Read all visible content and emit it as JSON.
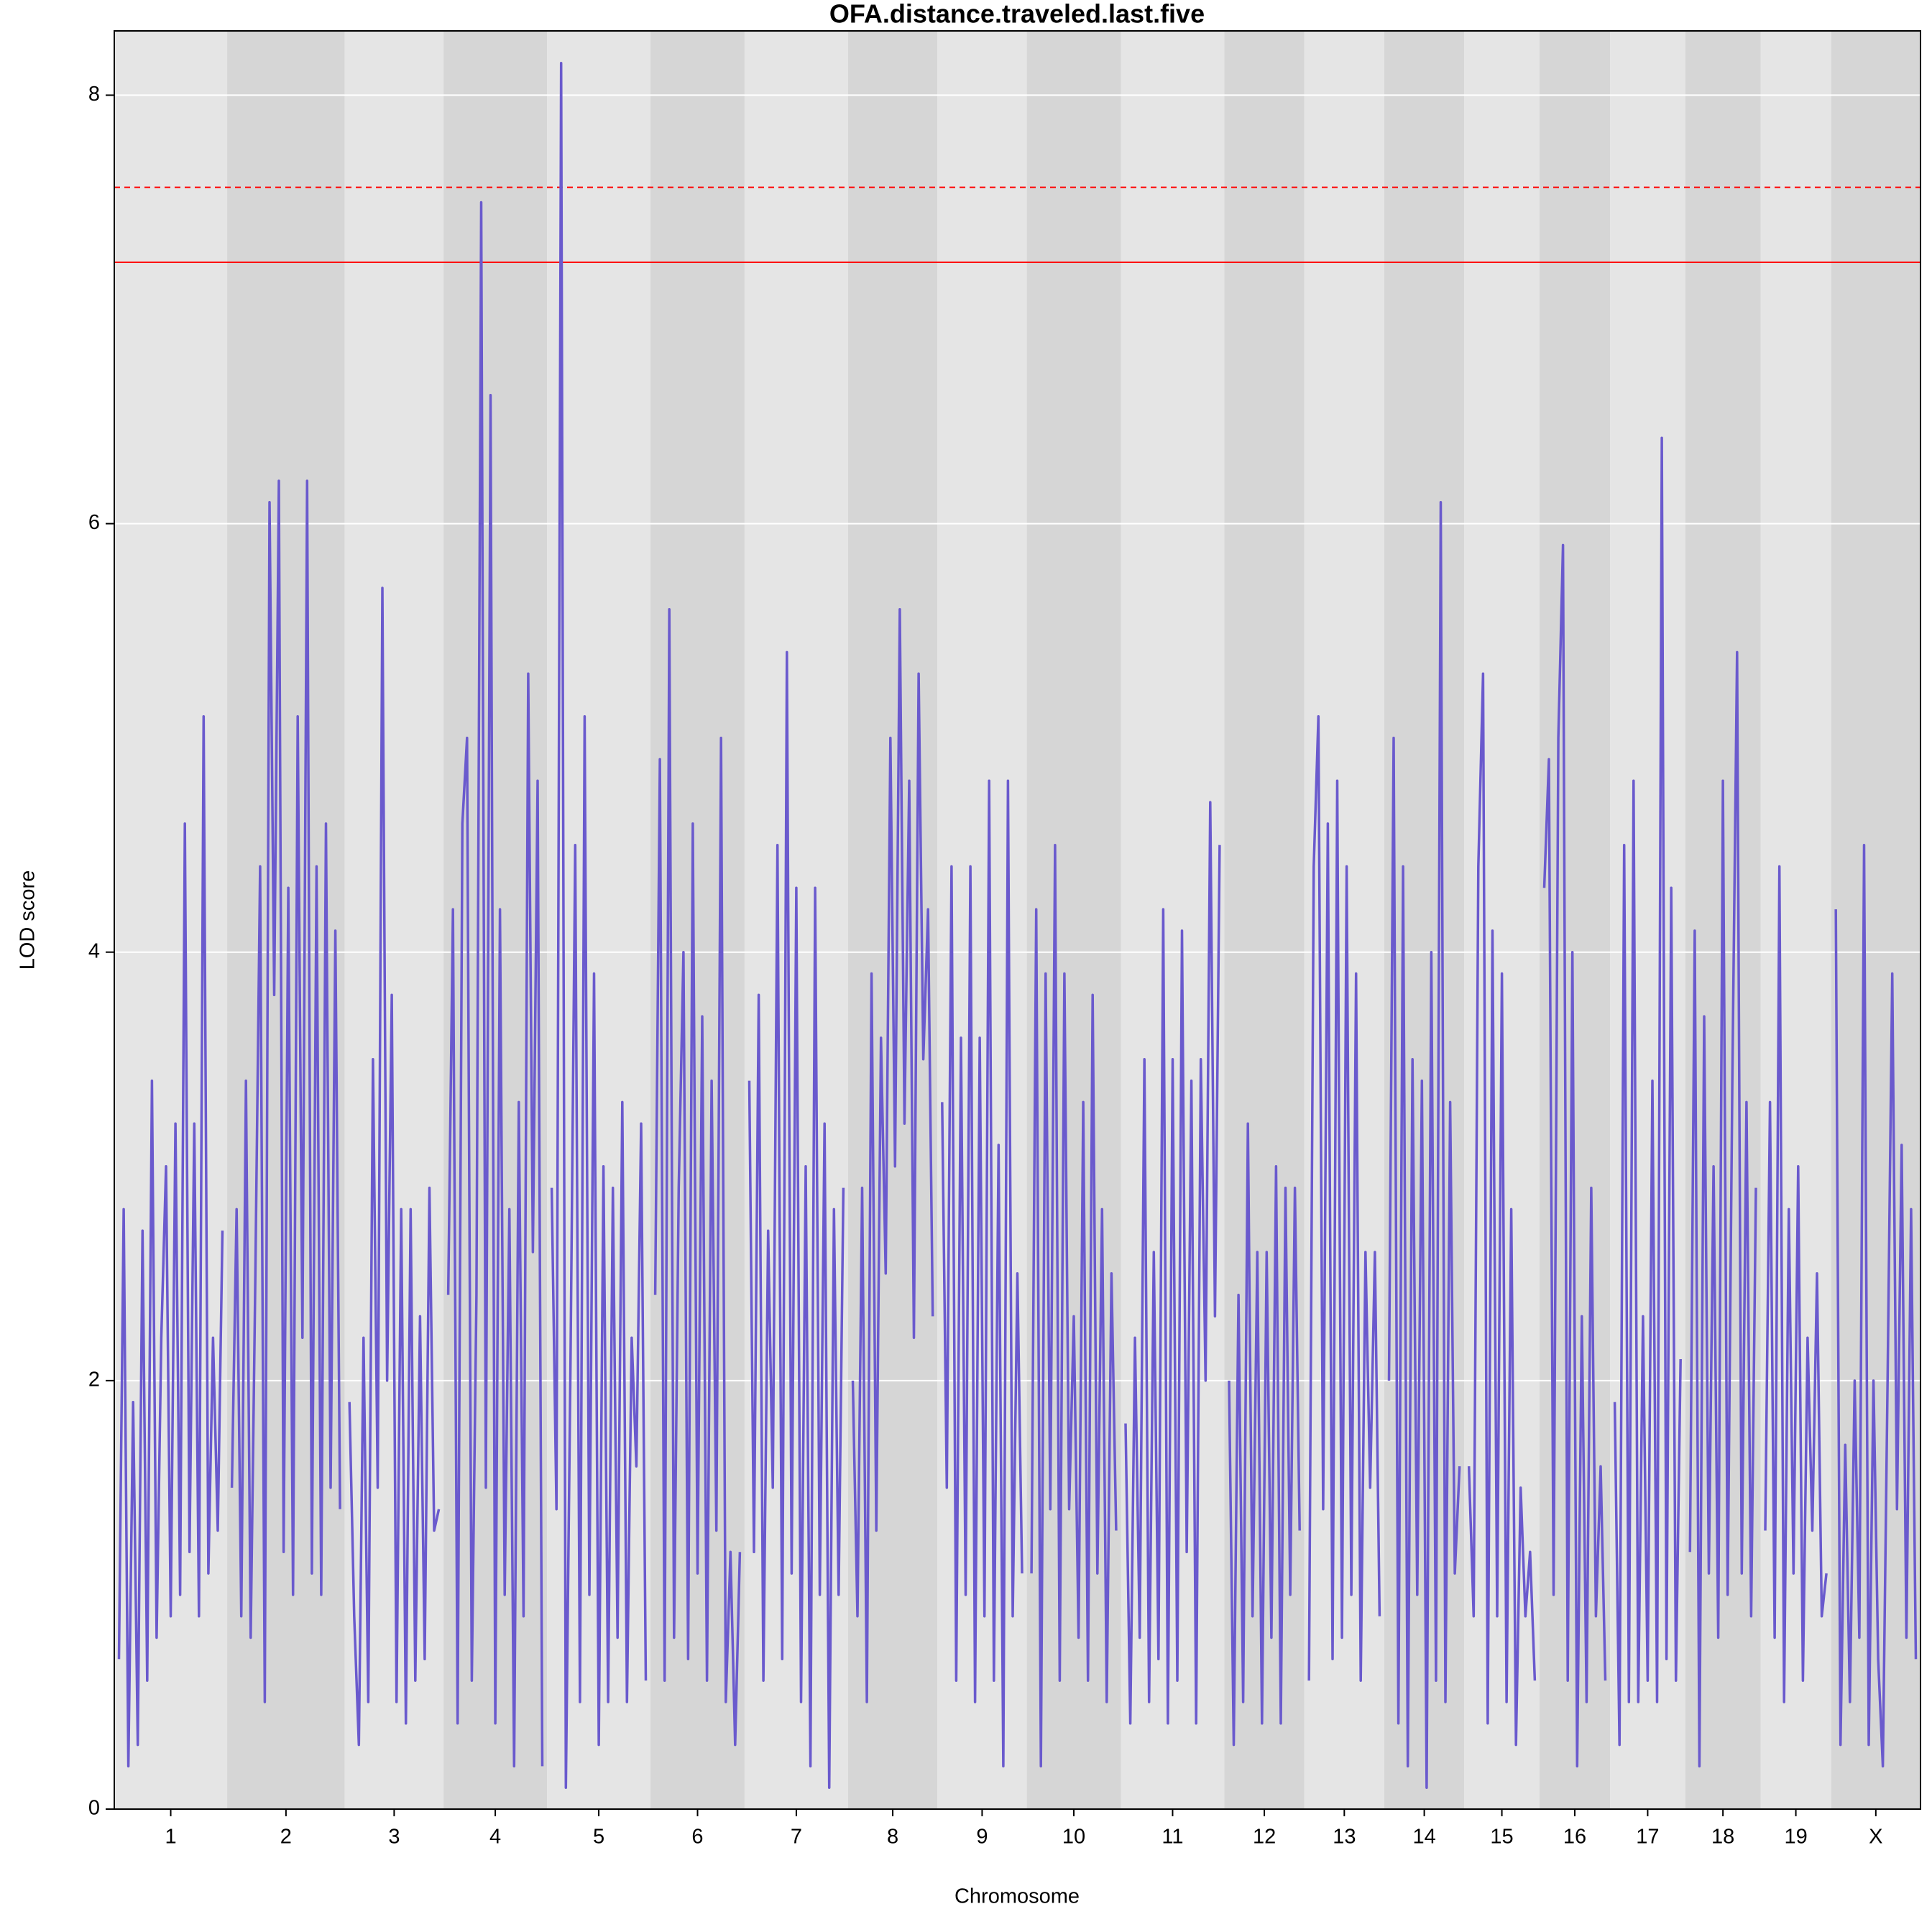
{
  "chart_data": {
    "type": "line",
    "title": "OFA.distance.traveled.last.five",
    "xlabel": "Chromosome",
    "ylabel": "LOD score",
    "categories": [
      "1",
      "2",
      "3",
      "4",
      "5",
      "6",
      "7",
      "8",
      "9",
      "10",
      "11",
      "12",
      "13",
      "14",
      "15",
      "16",
      "17",
      "18",
      "19",
      "X"
    ],
    "values": [
      [
        0.7,
        2.8,
        0.2,
        1.9,
        0.3,
        2.7,
        0.6,
        3.4,
        0.8,
        2.2,
        3.0,
        0.9,
        3.2,
        1.0,
        4.6,
        1.2,
        3.2,
        0.9,
        5.1,
        1.1,
        2.2,
        1.3,
        2.7
      ],
      [
        1.5,
        2.8,
        0.9,
        3.4,
        0.8,
        2.5,
        4.4,
        0.5,
        6.1,
        3.8,
        6.2,
        1.2,
        4.3,
        1.0,
        5.1,
        2.2,
        6.2,
        1.1,
        4.4,
        1.0,
        4.6,
        1.5,
        4.1,
        1.4
      ],
      [
        1.9,
        0.9,
        0.3,
        2.2,
        0.5,
        3.5,
        1.5,
        5.7,
        2.0,
        3.8,
        0.5,
        2.8,
        0.4,
        2.8,
        0.6,
        2.3,
        0.7,
        2.9,
        1.3,
        1.4
      ],
      [
        2.4,
        4.2,
        0.4,
        4.6,
        5.0,
        0.6,
        2.4,
        7.5,
        1.5,
        6.6,
        0.4,
        4.2,
        1.0,
        2.8,
        0.2,
        3.3,
        0.9,
        5.3,
        2.6,
        4.8,
        0.2
      ],
      [
        2.9,
        1.4,
        8.15,
        0.1,
        2.1,
        4.5,
        0.5,
        5.1,
        1.0,
        3.9,
        0.3,
        3.0,
        0.5,
        2.9,
        0.8,
        3.3,
        0.5,
        2.2,
        1.6,
        3.2,
        0.6
      ],
      [
        2.4,
        4.9,
        0.6,
        5.6,
        0.8,
        2.9,
        4.0,
        0.7,
        4.6,
        1.1,
        3.7,
        0.6,
        3.4,
        1.3,
        5.0,
        0.5,
        1.2,
        0.3,
        1.2
      ],
      [
        3.4,
        1.2,
        3.8,
        0.6,
        2.7,
        1.5,
        4.5,
        0.7,
        5.4,
        1.1,
        4.3,
        0.5,
        3.0,
        0.2,
        4.3,
        1.0,
        3.2,
        0.1,
        2.8,
        1.0,
        2.9
      ],
      [
        2.0,
        0.9,
        2.9,
        0.5,
        3.9,
        1.3,
        3.6,
        2.5,
        5.0,
        3.0,
        5.6,
        3.2,
        4.8,
        2.2,
        5.3,
        3.5,
        4.2,
        2.3
      ],
      [
        3.3,
        1.5,
        4.4,
        0.6,
        3.6,
        1.0,
        4.4,
        0.5,
        3.6,
        0.9,
        4.8,
        0.6,
        3.1,
        0.2,
        4.8,
        0.9,
        2.5,
        1.1
      ],
      [
        1.1,
        4.2,
        0.2,
        3.9,
        1.4,
        4.5,
        0.6,
        3.9,
        1.4,
        2.3,
        0.8,
        3.3,
        0.6,
        3.8,
        1.1,
        2.8,
        0.5,
        2.5,
        1.3
      ],
      [
        1.8,
        0.4,
        2.2,
        0.8,
        3.5,
        0.5,
        2.6,
        0.7,
        4.2,
        0.4,
        3.5,
        0.6,
        4.1,
        1.2,
        3.4,
        0.4,
        3.5,
        2.0,
        4.7,
        2.3,
        4.5
      ],
      [
        2.0,
        0.3,
        2.4,
        0.5,
        3.2,
        0.9,
        2.6,
        0.4,
        2.6,
        0.8,
        3.0,
        0.4,
        2.9,
        1.0,
        2.9,
        1.3
      ],
      [
        0.6,
        4.4,
        5.1,
        1.4,
        4.6,
        0.7,
        4.8,
        0.8,
        4.4,
        1.0,
        3.9,
        0.6,
        2.6,
        1.5,
        2.6,
        0.9
      ],
      [
        2.0,
        5.0,
        0.4,
        4.4,
        0.2,
        3.5,
        1.0,
        3.4,
        0.1,
        4.0,
        0.6,
        6.1,
        0.5,
        3.3,
        1.1,
        1.6
      ],
      [
        1.6,
        0.9,
        4.4,
        5.3,
        0.4,
        4.1,
        0.9,
        3.9,
        0.5,
        2.8,
        0.3,
        1.5,
        0.9,
        1.2,
        0.6
      ],
      [
        4.3,
        4.9,
        1.0,
        5.0,
        5.9,
        0.6,
        4.0,
        0.2,
        2.3,
        0.5,
        2.9,
        0.9,
        1.6,
        0.6
      ],
      [
        1.9,
        0.3,
        4.5,
        0.5,
        4.8,
        0.5,
        2.3,
        0.6,
        3.4,
        0.5,
        6.4,
        0.7,
        4.3,
        0.6,
        2.1
      ],
      [
        1.2,
        4.1,
        0.2,
        3.7,
        1.1,
        3.0,
        0.8,
        4.8,
        1.0,
        3.4,
        5.4,
        1.1,
        3.3,
        0.9,
        2.9
      ],
      [
        1.3,
        3.3,
        0.8,
        4.4,
        0.5,
        2.8,
        1.1,
        3.0,
        0.6,
        2.2,
        1.3,
        2.5,
        0.9,
        1.1
      ],
      [
        4.2,
        0.3,
        1.7,
        0.5,
        2.0,
        0.8,
        4.5,
        0.3,
        2.0,
        0.7,
        0.2,
        2.0,
        3.9,
        1.4,
        3.1,
        0.8,
        2.8,
        0.7
      ]
    ],
    "color": "#6a5acd",
    "band_colors": [
      "#e5e5e5",
      "#d6d6d6"
    ],
    "ylim": [
      0,
      8.3
    ],
    "yticks": [
      0,
      2,
      4,
      6,
      8
    ],
    "grid": true,
    "hlines": [
      {
        "value": 7.57,
        "color": "#ff0000",
        "dashed": true
      },
      {
        "value": 7.22,
        "color": "#ff0000",
        "dashed": false
      }
    ]
  }
}
